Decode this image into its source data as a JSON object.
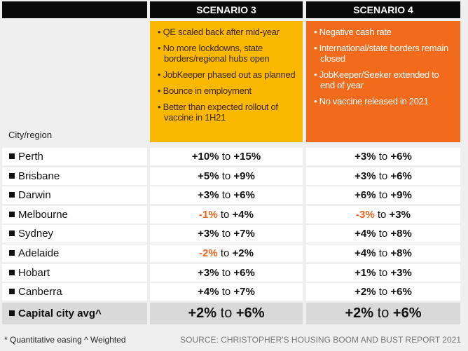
{
  "headers": [
    "SCENARIO 3",
    "SCENARIO 4"
  ],
  "scenario3": [
    "QE scaled back after mid-year",
    "No more lockdowns, state borders/regional hubs open",
    "JobKeeper phased out as planned",
    "Bounce in employment",
    "Better than expected rollout of vaccine in 1H21"
  ],
  "scenario4": [
    "Negative cash rate",
    "International/state borders remain closed",
    "JobKeeper/Seeker extended to end of year",
    "No vaccine released in 2021"
  ],
  "colors": {
    "scenario3": "#fbb800",
    "scenario4": "#f26a1b",
    "negative": "#e8651f"
  },
  "city_header": "City/region",
  "connector": "to",
  "rows": [
    {
      "city": "Perth",
      "s3": [
        "+10%",
        "+15%"
      ],
      "s4": [
        "+3%",
        "+6%"
      ]
    },
    {
      "city": "Brisbane",
      "s3": [
        "+5%",
        "+9%"
      ],
      "s4": [
        "+3%",
        "+6%"
      ]
    },
    {
      "city": "Darwin",
      "s3": [
        "+3%",
        "+6%"
      ],
      "s4": [
        "+6%",
        "+9%"
      ]
    },
    {
      "city": "Melbourne",
      "s3": [
        "-1%",
        "+4%"
      ],
      "s4": [
        "-3%",
        "+3%"
      ]
    },
    {
      "city": "Sydney",
      "s3": [
        "+3%",
        "+7%"
      ],
      "s4": [
        "+4%",
        "+8%"
      ]
    },
    {
      "city": "Adelaide",
      "s3": [
        "-2%",
        "+2%"
      ],
      "s4": [
        "+4%",
        "+8%"
      ]
    },
    {
      "city": "Hobart",
      "s3": [
        "+3%",
        "+6%"
      ],
      "s4": [
        "+1%",
        "+3%"
      ]
    },
    {
      "city": "Canberra",
      "s3": [
        "+4%",
        "+7%"
      ],
      "s4": [
        "+2%",
        "+6%"
      ]
    }
  ],
  "average": {
    "city": "Capital city avg^",
    "s3": [
      "+2%",
      "+6%"
    ],
    "s4": [
      "+2%",
      "+6%"
    ]
  },
  "footnote": "* Quantitative easing   ^ Weighted",
  "source": "SOURCE: CHRISTOPHER'S HOUSING BOOM AND BUST REPORT 2021"
}
